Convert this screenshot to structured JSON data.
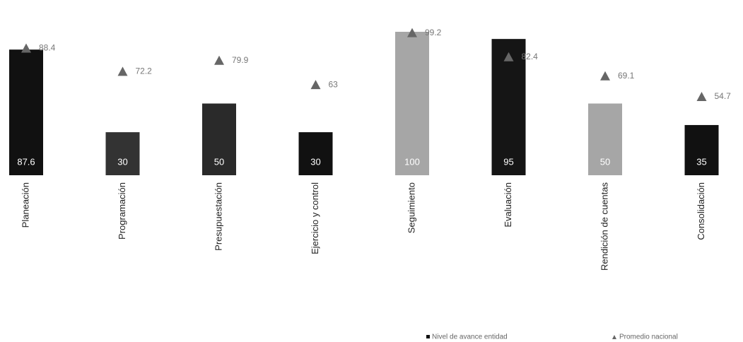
{
  "chart_data": {
    "type": "bar",
    "categories": [
      "Planeación",
      "Programación",
      "Presupuestación",
      "Ejercicio y control",
      "Seguimiento",
      "Evaluación",
      "Rendición de cuentas",
      "Consolidación"
    ],
    "ylim": [
      0,
      100
    ],
    "series": [
      {
        "name": "Nivel de avance entidad",
        "values": [
          87.6,
          30,
          50,
          30,
          100,
          95,
          50,
          35
        ],
        "colors": [
          "#111111",
          "#333333",
          "#2a2a2a",
          "#111111",
          "#a6a6a6",
          "#151515",
          "#a6a6a6",
          "#111111"
        ]
      },
      {
        "name": "Promedio nacional",
        "color": "#666666",
        "marker": "triangle",
        "values": [
          88.4,
          72.2,
          79.9,
          63,
          99.2,
          82.4,
          69.1,
          54.7
        ]
      }
    ]
  }
}
